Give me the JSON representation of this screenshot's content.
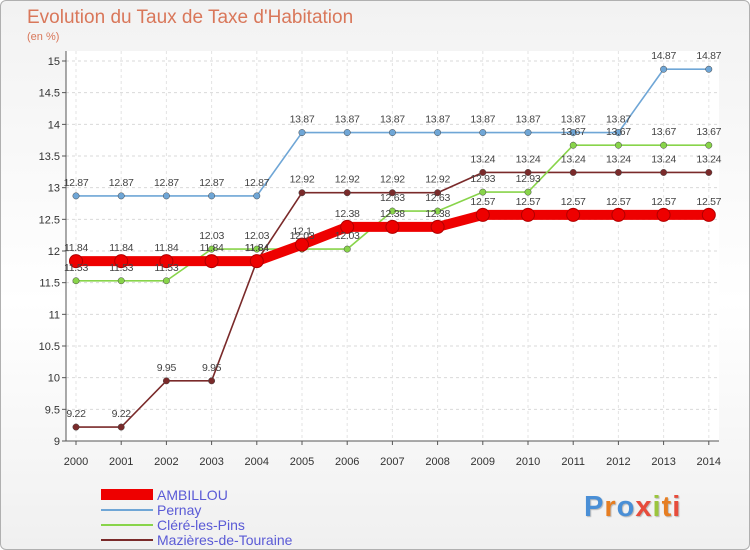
{
  "title": "Evolution du Taux de Taxe d'Habitation",
  "subtitle": "(en %)",
  "chart_data": {
    "type": "line",
    "title": "Evolution du Taux de Taxe d'Habitation",
    "ylabel": "(en %)",
    "xlabel": "",
    "ylim": [
      9,
      15
    ],
    "yticks": [
      "9",
      "9.5",
      "10",
      "10.5",
      "11",
      "11.5",
      "12",
      "12.5",
      "13",
      "13.5",
      "14",
      "14.5",
      "15"
    ],
    "categories": [
      "2000",
      "2001",
      "2002",
      "2003",
      "2004",
      "2005",
      "2006",
      "2007",
      "2008",
      "2009",
      "2010",
      "2011",
      "2012",
      "2013",
      "2014"
    ],
    "grid": true,
    "legend": "bottom-left",
    "series": [
      {
        "name": "Mazières-de-Touraine",
        "color": "#7a2a2a",
        "values": [
          9.22,
          9.22,
          9.95,
          9.95,
          11.84,
          12.92,
          12.92,
          12.92,
          12.92,
          13.24,
          13.24,
          13.24,
          13.24,
          13.24,
          13.24
        ],
        "labels": [
          "9.22",
          "9.22",
          "9.95",
          "9.95",
          "11.84",
          "12.92",
          "12.92",
          "12.92",
          "12.92",
          "13.24",
          "13.24",
          "13.24",
          "13.24",
          "13.24",
          "13.24"
        ]
      },
      {
        "name": "Cléré-les-Pins",
        "color": "#88d44a",
        "values": [
          11.53,
          11.53,
          11.53,
          12.03,
          12.03,
          12.03,
          12.03,
          12.63,
          12.63,
          12.93,
          12.93,
          13.67,
          13.67,
          13.67,
          13.67
        ],
        "labels": [
          "11.53",
          "11.53",
          "11.53",
          "12.03",
          "12.03",
          "12.03",
          "12.03",
          "12.63",
          "12.63",
          "12.93",
          "12.93",
          "13.67",
          "13.67",
          "13.67",
          "13.67"
        ]
      },
      {
        "name": "Pernay",
        "color": "#6fa6d6",
        "values": [
          12.87,
          12.87,
          12.87,
          12.87,
          12.87,
          13.87,
          13.87,
          13.87,
          13.87,
          13.87,
          13.87,
          13.87,
          13.87,
          14.87,
          14.87
        ],
        "labels": [
          "12.87",
          "12.87",
          "12.87",
          "12.87",
          "12.87",
          "13.87",
          "13.87",
          "13.87",
          "13.87",
          "13.87",
          "13.87",
          "13.87",
          "13.87",
          "14.87",
          "14.87"
        ]
      },
      {
        "name": "AMBILLOU",
        "color": "#ee0000",
        "values": [
          11.84,
          11.84,
          11.84,
          11.84,
          11.84,
          12.1,
          12.38,
          12.38,
          12.38,
          12.57,
          12.57,
          12.57,
          12.57,
          12.57,
          12.57
        ],
        "labels": [
          "11.84",
          "11.84",
          "11.84",
          "11.84",
          "11.84",
          "12.1",
          "12.38",
          "12.38",
          "12.38",
          "12.57",
          "12.57",
          "12.57",
          "12.57",
          "12.57",
          "12.57"
        ]
      }
    ]
  },
  "legend": {
    "items": [
      {
        "name": "AMBILLOU",
        "color": "#ee0000"
      },
      {
        "name": "Pernay",
        "color": "#6fa6d6"
      },
      {
        "name": "Cléré-les-Pins",
        "color": "#88d44a"
      },
      {
        "name": "Mazières-de-Touraine",
        "color": "#7a2a2a"
      }
    ]
  },
  "logo": {
    "text": "Proxiti",
    "colors": [
      "#4a8fd6",
      "#e67e22",
      "#4a8fd6",
      "#e74c3c",
      "#9bc53d",
      "#e67e22",
      "#e74c3c"
    ]
  }
}
